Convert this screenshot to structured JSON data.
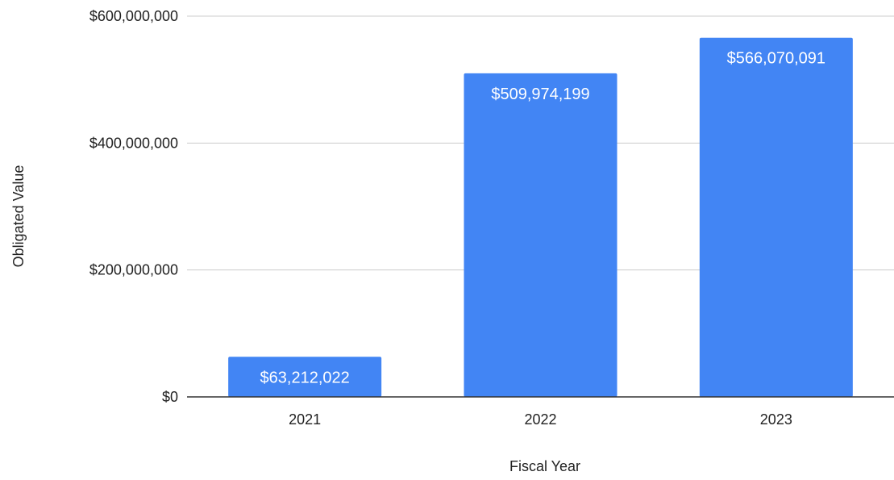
{
  "chart_data": {
    "type": "bar",
    "title": "",
    "xlabel": "Fiscal Year",
    "ylabel": "Obligated Value",
    "categories": [
      "2021",
      "2022",
      "2023"
    ],
    "values": [
      63212022,
      509974199,
      566070091
    ],
    "data_labels": [
      "$63,212,022",
      "$509,974,199",
      "$566,070,091"
    ],
    "ylim": [
      0,
      600000000
    ],
    "y_ticks": [
      0,
      200000000,
      400000000,
      600000000
    ],
    "y_tick_labels": [
      "$0",
      "$200,000,000",
      "$400,000,000",
      "$600,000,000"
    ],
    "grid": true,
    "legend": "none",
    "colors": {
      "bar": "#4285f4",
      "grid": "#cccccc",
      "baseline": "#333333",
      "text": "#222222",
      "label": "#ffffff"
    }
  }
}
